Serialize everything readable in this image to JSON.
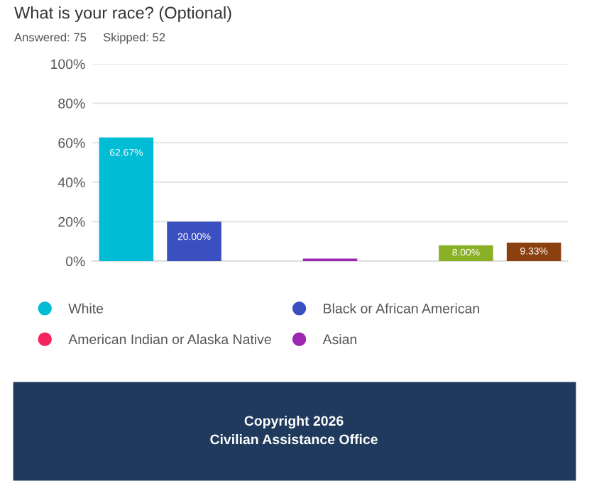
{
  "chart_data": {
    "type": "bar",
    "title": "What is your race? (Optional)",
    "subtitle": "Answered: 75     Skipped: 52",
    "categories": [
      null,
      null,
      null,
      null,
      null,
      null,
      null
    ],
    "series": [
      {
        "name": "White",
        "color": "#00bcd4",
        "values": [
          62.67,
          null,
          null,
          null,
          null,
          null,
          null
        ],
        "value_labels": [
          "62.67%",
          null,
          null,
          null,
          null,
          null,
          null
        ]
      },
      {
        "name": "Black or African American",
        "color": "#3a4fc0",
        "values": [
          null,
          20.0,
          null,
          null,
          null,
          null,
          null
        ],
        "value_labels": [
          null,
          "20.00%",
          null,
          null,
          null,
          null,
          null
        ]
      },
      {
        "name": "American Indian or Alaska Native",
        "color": "#f5245f",
        "values": [
          null,
          null,
          0,
          null,
          null,
          null,
          null
        ],
        "value_labels": [
          null,
          null,
          null,
          null,
          null,
          null,
          null
        ]
      },
      {
        "name": "Asian",
        "color": "#9c27b0",
        "values": [
          null,
          null,
          null,
          1.3,
          null,
          null,
          null
        ],
        "value_labels": [
          null,
          null,
          null,
          null,
          null,
          null,
          null
        ]
      },
      {
        "color": "#8ab026",
        "values": [
          null,
          null,
          null,
          null,
          null,
          8.0,
          null
        ],
        "value_labels": [
          null,
          null,
          null,
          null,
          null,
          "8.00%",
          null
        ]
      },
      {
        "color": "#8b4010",
        "values": [
          null,
          null,
          null,
          null,
          null,
          null,
          9.33
        ],
        "value_labels": [
          null,
          null,
          null,
          null,
          null,
          null,
          "9.33%"
        ]
      }
    ],
    "ylim": [
      0,
      100
    ],
    "yticks": [
      {
        "value": 0,
        "label": "0%"
      },
      {
        "value": 20,
        "label": "20%"
      },
      {
        "value": 40,
        "label": "40%"
      },
      {
        "value": 60,
        "label": "60%"
      },
      {
        "value": 80,
        "label": "80%"
      },
      {
        "value": 100,
        "label": "100%"
      }
    ],
    "grid": "y",
    "legend": "bottom",
    "annotations": [
      "Copyright 2026",
      "Civilian Assistance Office"
    ]
  }
}
